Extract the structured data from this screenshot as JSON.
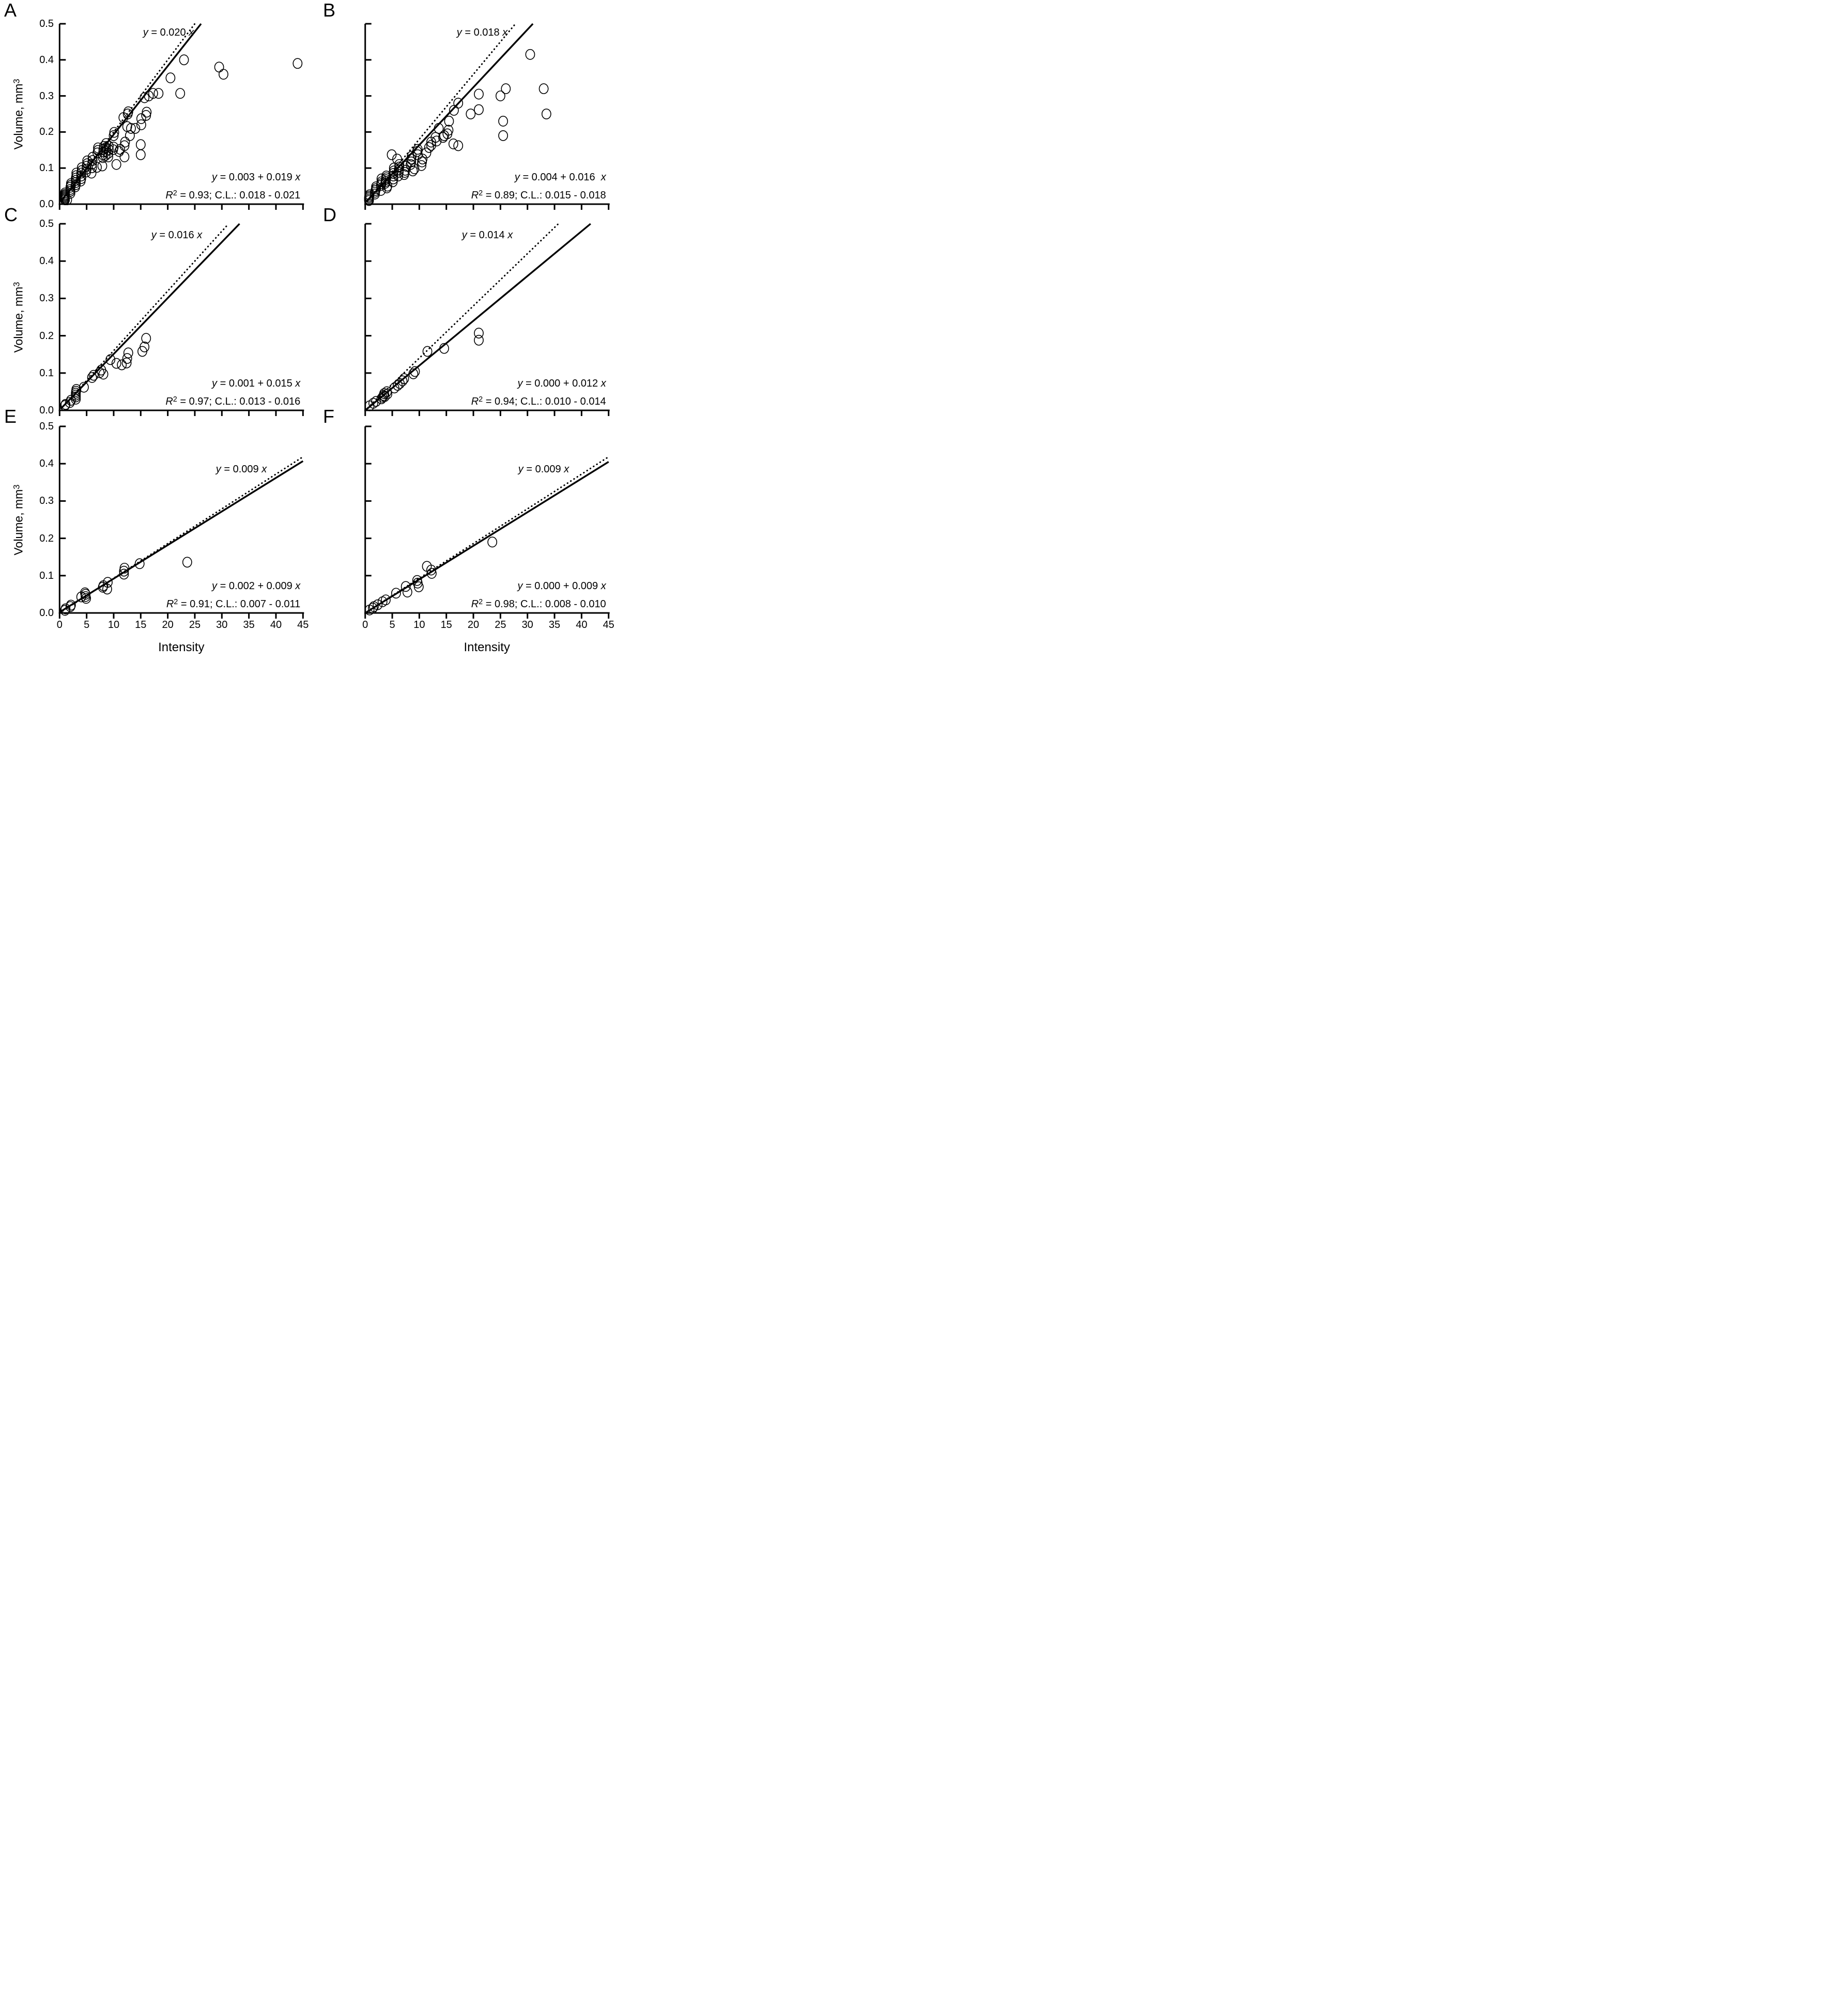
{
  "figure": {
    "xlabel": "Intensity",
    "ylabel": "Volume, mm^3",
    "y_tick_labels": [
      "0.5",
      "0.4",
      "0.3",
      "0.2",
      "0.1",
      "0.0"
    ],
    "x_tick_labels": [
      "0",
      "5",
      "10",
      "15",
      "20",
      "25",
      "30",
      "35",
      "40",
      "45"
    ]
  },
  "chart_data": {
    "type": "scatter",
    "xlabel": "Intensity",
    "ylabel": "Volume, mm^3",
    "xlim": [
      0,
      45
    ],
    "ylim": [
      0,
      0.5
    ],
    "x_ticks": [
      0,
      5,
      10,
      15,
      20,
      25,
      30,
      35,
      40,
      45
    ],
    "y_ticks": [
      0,
      0.1,
      0.2,
      0.3,
      0.4,
      0.5
    ],
    "grid": false,
    "legend": "none",
    "marker": "open-circle",
    "panels": [
      {
        "letter": "A",
        "dotted_label": "y = 0.020 x",
        "dotted_slope": 0.02,
        "fit_label": "y = 0.003 + 0.019 x",
        "fit_intercept": 0.003,
        "fit_slope": 0.019,
        "r2_label": "R^2 = 0.93; C.L.: 0.018 - 0.021",
        "points": [
          [
            1,
            0.012
          ],
          [
            1,
            0.015
          ],
          [
            1,
            0.018
          ],
          [
            1,
            0.021
          ],
          [
            1,
            0.024
          ],
          [
            1,
            0.027
          ],
          [
            1,
            0.031
          ],
          [
            1.4,
            0.012
          ],
          [
            2,
            0.03
          ],
          [
            2,
            0.036
          ],
          [
            2,
            0.041
          ],
          [
            2,
            0.047
          ],
          [
            2.1,
            0.052
          ],
          [
            2.1,
            0.057
          ],
          [
            2.9,
            0.048
          ],
          [
            3,
            0.054
          ],
          [
            3,
            0.06
          ],
          [
            3,
            0.066
          ],
          [
            3,
            0.072
          ],
          [
            3.1,
            0.079
          ],
          [
            3.1,
            0.086
          ],
          [
            3.9,
            0.064
          ],
          [
            4,
            0.071
          ],
          [
            4,
            0.078
          ],
          [
            4,
            0.086
          ],
          [
            4.1,
            0.093
          ],
          [
            4.1,
            0.101
          ],
          [
            4.9,
            0.089
          ],
          [
            5,
            0.097
          ],
          [
            5,
            0.105
          ],
          [
            5.1,
            0.112
          ],
          [
            5.1,
            0.12
          ],
          [
            5.9,
            0.086
          ],
          [
            6,
            0.101
          ],
          [
            6,
            0.111
          ],
          [
            6.1,
            0.121
          ],
          [
            6.1,
            0.13
          ],
          [
            6.9,
            0.102
          ],
          [
            7,
            0.142
          ],
          [
            7.1,
            0.149
          ],
          [
            7.1,
            0.156
          ],
          [
            7.9,
            0.106
          ],
          [
            8,
            0.129
          ],
          [
            8,
            0.137
          ],
          [
            8.1,
            0.145
          ],
          [
            8.1,
            0.152
          ],
          [
            8.2,
            0.16
          ],
          [
            8.5,
            0.135
          ],
          [
            8.6,
            0.146
          ],
          [
            8.6,
            0.157
          ],
          [
            8.6,
            0.168
          ],
          [
            9,
            0.131
          ],
          [
            9,
            0.141
          ],
          [
            9.1,
            0.151
          ],
          [
            9.1,
            0.161
          ],
          [
            9.9,
            0.151
          ],
          [
            10,
            0.158
          ],
          [
            10,
            0.19
          ],
          [
            10.1,
            0.199
          ],
          [
            10.5,
            0.11
          ],
          [
            11,
            0.146
          ],
          [
            11.2,
            0.152
          ],
          [
            11.8,
            0.24
          ],
          [
            12,
            0.131
          ],
          [
            12,
            0.162
          ],
          [
            12.1,
            0.172
          ],
          [
            12.5,
            0.215
          ],
          [
            12.6,
            0.25
          ],
          [
            12.7,
            0.256
          ],
          [
            13,
            0.19
          ],
          [
            13.2,
            0.21
          ],
          [
            14,
            0.21
          ],
          [
            15,
            0.137
          ],
          [
            15,
            0.165
          ],
          [
            15.1,
            0.22
          ],
          [
            15.1,
            0.237
          ],
          [
            16,
            0.246
          ],
          [
            16.1,
            0.255
          ],
          [
            15.7,
            0.295
          ],
          [
            16.5,
            0.3
          ],
          [
            17.3,
            0.307
          ],
          [
            18.3,
            0.307
          ],
          [
            22.3,
            0.307
          ],
          [
            20.5,
            0.35
          ],
          [
            23,
            0.4
          ],
          [
            29.5,
            0.38
          ],
          [
            30.3,
            0.36
          ],
          [
            44,
            0.39
          ]
        ]
      },
      {
        "letter": "B",
        "dotted_label": "y = 0.018 x",
        "dotted_slope": 0.018,
        "fit_label": "y = 0.004 + 0.016  x",
        "fit_intercept": 0.004,
        "fit_slope": 0.016,
        "r2_label": "R^2 = 0.89; C.L.: 0.015 - 0.018",
        "points": [
          [
            0.7,
            0.01
          ],
          [
            0.7,
            0.014
          ],
          [
            0.7,
            0.018
          ],
          [
            0.75,
            0.022
          ],
          [
            0.8,
            0.026
          ],
          [
            1.8,
            0.028
          ],
          [
            1.8,
            0.033
          ],
          [
            1.9,
            0.038
          ],
          [
            2,
            0.043
          ],
          [
            2,
            0.048
          ],
          [
            2.9,
            0.038
          ],
          [
            2.9,
            0.052
          ],
          [
            3,
            0.057
          ],
          [
            3,
            0.062
          ],
          [
            3,
            0.07
          ],
          [
            3.7,
            0.058
          ],
          [
            3.8,
            0.063
          ],
          [
            3.8,
            0.068
          ],
          [
            3.9,
            0.073
          ],
          [
            3.9,
            0.078
          ],
          [
            4,
            0.045
          ],
          [
            4.1,
            0.05
          ],
          [
            4.9,
            0.137
          ],
          [
            5.9,
            0.125
          ],
          [
            5.1,
            0.062
          ],
          [
            5.2,
            0.07
          ],
          [
            5.2,
            0.078
          ],
          [
            5.2,
            0.085
          ],
          [
            5.3,
            0.092
          ],
          [
            5.3,
            0.1
          ],
          [
            6.1,
            0.078
          ],
          [
            6.2,
            0.088
          ],
          [
            6.2,
            0.095
          ],
          [
            6.3,
            0.103
          ],
          [
            6.3,
            0.11
          ],
          [
            7.2,
            0.082
          ],
          [
            7.3,
            0.088
          ],
          [
            7.4,
            0.094
          ],
          [
            7.6,
            0.105
          ],
          [
            8.4,
            0.11
          ],
          [
            8.5,
            0.117
          ],
          [
            8.5,
            0.125
          ],
          [
            8.6,
            0.133
          ],
          [
            8.8,
            0.092
          ],
          [
            9.1,
            0.098
          ],
          [
            9.6,
            0.146
          ],
          [
            9.7,
            0.152
          ],
          [
            9.7,
            0.137
          ],
          [
            10.4,
            0.107
          ],
          [
            10.5,
            0.117
          ],
          [
            10.6,
            0.125
          ],
          [
            11.3,
            0.142
          ],
          [
            11.8,
            0.157
          ],
          [
            12.2,
            0.163
          ],
          [
            12.2,
            0.172
          ],
          [
            13,
            0.185
          ],
          [
            13.2,
            0.175
          ],
          [
            13.6,
            0.21
          ],
          [
            14.4,
            0.185
          ],
          [
            14.6,
            0.19
          ],
          [
            15.2,
            0.195
          ],
          [
            15.4,
            0.205
          ],
          [
            15.5,
            0.23
          ],
          [
            16.3,
            0.167
          ],
          [
            16.4,
            0.26
          ],
          [
            17.2,
            0.162
          ],
          [
            17.2,
            0.28
          ],
          [
            19.5,
            0.25
          ],
          [
            21,
            0.305
          ],
          [
            21,
            0.262
          ],
          [
            25,
            0.3
          ],
          [
            25.5,
            0.23
          ],
          [
            25.5,
            0.19
          ],
          [
            26,
            0.32
          ],
          [
            30.5,
            0.415
          ],
          [
            33,
            0.32
          ],
          [
            33.5,
            0.25
          ]
        ]
      },
      {
        "letter": "C",
        "dotted_label": "y = 0.016 x",
        "dotted_slope": 0.016,
        "fit_label": "y = 0.001 + 0.015 x",
        "fit_intercept": 0.001,
        "fit_slope": 0.015,
        "r2_label": "R^2 = 0.97; C.L.: 0.013 - 0.016",
        "points": [
          [
            1,
            0.013
          ],
          [
            1.1,
            0.016
          ],
          [
            1.9,
            0.021
          ],
          [
            2.1,
            0.027
          ],
          [
            3,
            0.03
          ],
          [
            3,
            0.036
          ],
          [
            3,
            0.041
          ],
          [
            3,
            0.046
          ],
          [
            3.05,
            0.051
          ],
          [
            3.1,
            0.056
          ],
          [
            4.5,
            0.062
          ],
          [
            6,
            0.088
          ],
          [
            6.3,
            0.094
          ],
          [
            7.4,
            0.101
          ],
          [
            7.7,
            0.108
          ],
          [
            8.1,
            0.097
          ],
          [
            9.4,
            0.136
          ],
          [
            10.5,
            0.126
          ],
          [
            11.5,
            0.122
          ],
          [
            12.4,
            0.127
          ],
          [
            12.5,
            0.139
          ],
          [
            12.7,
            0.154
          ],
          [
            15.3,
            0.158
          ],
          [
            15.7,
            0.17
          ],
          [
            16,
            0.193
          ]
        ]
      },
      {
        "letter": "D",
        "dotted_label": "y = 0.014 x",
        "dotted_slope": 0.014,
        "fit_label": "y = 0.000 + 0.012 x",
        "fit_intercept": 0.0,
        "fit_slope": 0.012,
        "r2_label": "R^2 = 0.94; C.L.: 0.010 - 0.014",
        "points": [
          [
            0.8,
            0.012
          ],
          [
            1.5,
            0.019
          ],
          [
            2,
            0.024
          ],
          [
            3,
            0.031
          ],
          [
            3.2,
            0.035
          ],
          [
            3.4,
            0.04
          ],
          [
            3.5,
            0.045
          ],
          [
            3.6,
            0.037
          ],
          [
            4,
            0.05
          ],
          [
            4.1,
            0.044
          ],
          [
            5.4,
            0.06
          ],
          [
            6,
            0.067
          ],
          [
            6.4,
            0.072
          ],
          [
            6.9,
            0.079
          ],
          [
            7.2,
            0.085
          ],
          [
            8.9,
            0.098
          ],
          [
            9.2,
            0.104
          ],
          [
            11.5,
            0.158
          ],
          [
            14.6,
            0.166
          ],
          [
            21,
            0.188
          ],
          [
            21,
            0.207
          ]
        ]
      },
      {
        "letter": "E",
        "dotted_label": "y = 0.009 x",
        "dotted_slope": 0.009,
        "fit_label": "y = 0.002 + 0.009 x",
        "fit_intercept": 0.002,
        "fit_slope": 0.009,
        "r2_label": "R^2 = 0.91; C.L.: 0.007 - 0.011",
        "points": [
          [
            1,
            0.007
          ],
          [
            1.1,
            0.011
          ],
          [
            2,
            0.017
          ],
          [
            2.1,
            0.021
          ],
          [
            4,
            0.043
          ],
          [
            4.7,
            0.054
          ],
          [
            4.8,
            0.05
          ],
          [
            4.8,
            0.044
          ],
          [
            4.9,
            0.039
          ],
          [
            8,
            0.069
          ],
          [
            8.1,
            0.073
          ],
          [
            8.8,
            0.064
          ],
          [
            8.9,
            0.082
          ],
          [
            11.9,
            0.104
          ],
          [
            11.9,
            0.112
          ],
          [
            12,
            0.12
          ],
          [
            14.8,
            0.132
          ],
          [
            23.6,
            0.136
          ]
        ]
      },
      {
        "letter": "F",
        "dotted_label": "y = 0.009 x",
        "dotted_slope": 0.009,
        "fit_label": "y = 0.000 + 0.009 x",
        "fit_intercept": 0.0,
        "fit_slope": 0.009,
        "r2_label": "R^2 = 0.98; C.L.: 0.008 - 0.010",
        "points": [
          [
            0.8,
            0.008
          ],
          [
            1.4,
            0.013
          ],
          [
            1.6,
            0.017
          ],
          [
            2.3,
            0.022
          ],
          [
            3.2,
            0.03
          ],
          [
            3.8,
            0.035
          ],
          [
            5.7,
            0.053
          ],
          [
            7.5,
            0.071
          ],
          [
            7.8,
            0.056
          ],
          [
            9.6,
            0.087
          ],
          [
            9.7,
            0.08
          ],
          [
            9.9,
            0.07
          ],
          [
            11.4,
            0.125
          ],
          [
            12.2,
            0.115
          ],
          [
            12.3,
            0.106
          ],
          [
            23.5,
            0.19
          ]
        ]
      }
    ]
  }
}
